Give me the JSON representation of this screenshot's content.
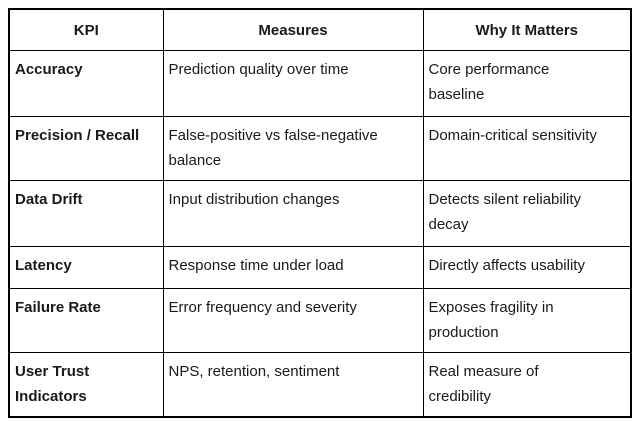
{
  "table": {
    "headers": [
      "KPI",
      "Measures",
      "Why It Matters"
    ],
    "rows": [
      {
        "kpi": "Accuracy",
        "measures": "Prediction quality over time",
        "why_it_matters": "Core performance\nbaseline"
      },
      {
        "kpi": "Precision / Recall",
        "measures": "False-positive vs false-negative\nbalance",
        "why_it_matters": "Domain-critical sensitivity"
      },
      {
        "kpi": "Data Drift",
        "measures": "Input distribution changes",
        "why_it_matters": "Detects silent reliability\ndecay"
      },
      {
        "kpi": "Latency",
        "measures": "Response time under load",
        "why_it_matters": "Directly affects usability"
      },
      {
        "kpi": "Failure Rate",
        "measures": "Error frequency and severity",
        "why_it_matters": "Exposes fragility in\nproduction"
      },
      {
        "kpi": "User Trust\nIndicators",
        "measures": "NPS, retention, sentiment",
        "why_it_matters": "Real measure of\ncredibility"
      }
    ],
    "border_color": "#000000",
    "text_color": "#1a1a1a",
    "background": "#ffffff"
  }
}
